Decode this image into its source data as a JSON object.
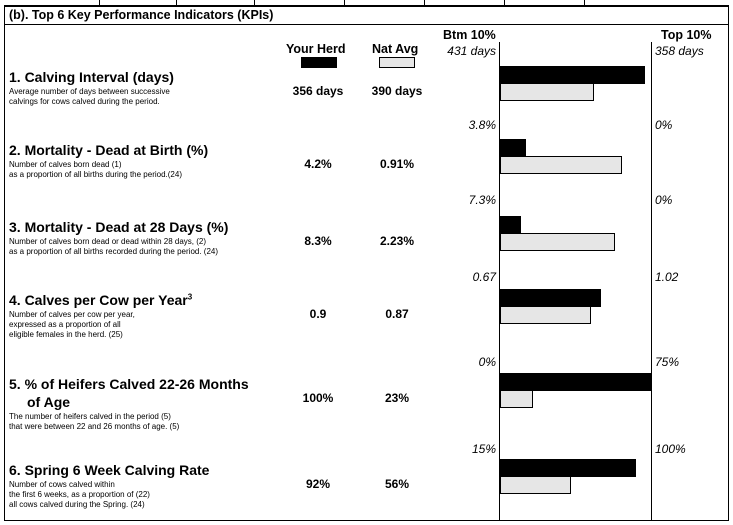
{
  "section_title": "(b). Top 6 Key Performance Indicators (KPIs)",
  "columns": {
    "your_herd": "Your Herd",
    "nat_avg": "Nat Avg",
    "btm": "Btm 10%",
    "top": "Top 10%"
  },
  "colors": {
    "herd_bar": "#000000",
    "nat_bar": "#e6e6e6"
  },
  "kpis": [
    {
      "title": "1. Calving Interval (days)",
      "desc": [
        "Average number of days between successive",
        "calvings for cows calved during the period."
      ],
      "your_herd": "356 days",
      "nat_avg": "390 days",
      "btm_label": "431 days",
      "top_label": "358 days",
      "herd_fraction": 0.96,
      "nat_fraction": 0.62
    },
    {
      "title": "2. Mortality - Dead at Birth (%)",
      "desc": [
        "Number of calves born dead (1)",
        "as a proportion of all births during the period.(24)"
      ],
      "your_herd": "4.2%",
      "nat_avg": "0.91%",
      "btm_label": "3.8%",
      "top_label": "0%",
      "herd_fraction": 0.17,
      "nat_fraction": 0.81
    },
    {
      "title": "3. Mortality - Dead at 28 Days (%)",
      "desc": [
        "Number of calves born dead or dead within 28 days, (2)",
        "as a proportion of all births recorded during the period. (24)"
      ],
      "your_herd": "8.3%",
      "nat_avg": "2.23%",
      "btm_label": "7.3%",
      "top_label": "0%",
      "herd_fraction": 0.14,
      "nat_fraction": 0.76
    },
    {
      "title": "4. Calves per Cow per Year",
      "superscript": "3",
      "desc": [
        "Number of calves per cow per year,",
        "expressed as a proportion of all",
        "eligible females in the herd. (25)"
      ],
      "your_herd": "0.9",
      "nat_avg": "0.87",
      "btm_label": "0.67",
      "top_label": "1.02",
      "herd_fraction": 0.67,
      "nat_fraction": 0.6
    },
    {
      "title": "5. % of Heifers Calved 22-26 Months",
      "title2": "of Age",
      "desc": [
        "The number of heifers calved in the period  (5)",
        "that were between 22 and 26 months of age.  (5)"
      ],
      "your_herd": "100%",
      "nat_avg": "23%",
      "btm_label": "0%",
      "top_label": "75%",
      "herd_fraction": 1.0,
      "nat_fraction": 0.22
    },
    {
      "title": "6. Spring 6 Week Calving Rate",
      "desc": [
        "Number of cows calved within",
        "the first 6 weeks, as a proportion of  (22)",
        "all cows calved during the Spring.   (24)"
      ],
      "your_herd": "92%",
      "nat_avg": "56%",
      "btm_label": "15%",
      "top_label": "100%",
      "herd_fraction": 0.9,
      "nat_fraction": 0.47
    }
  ]
}
